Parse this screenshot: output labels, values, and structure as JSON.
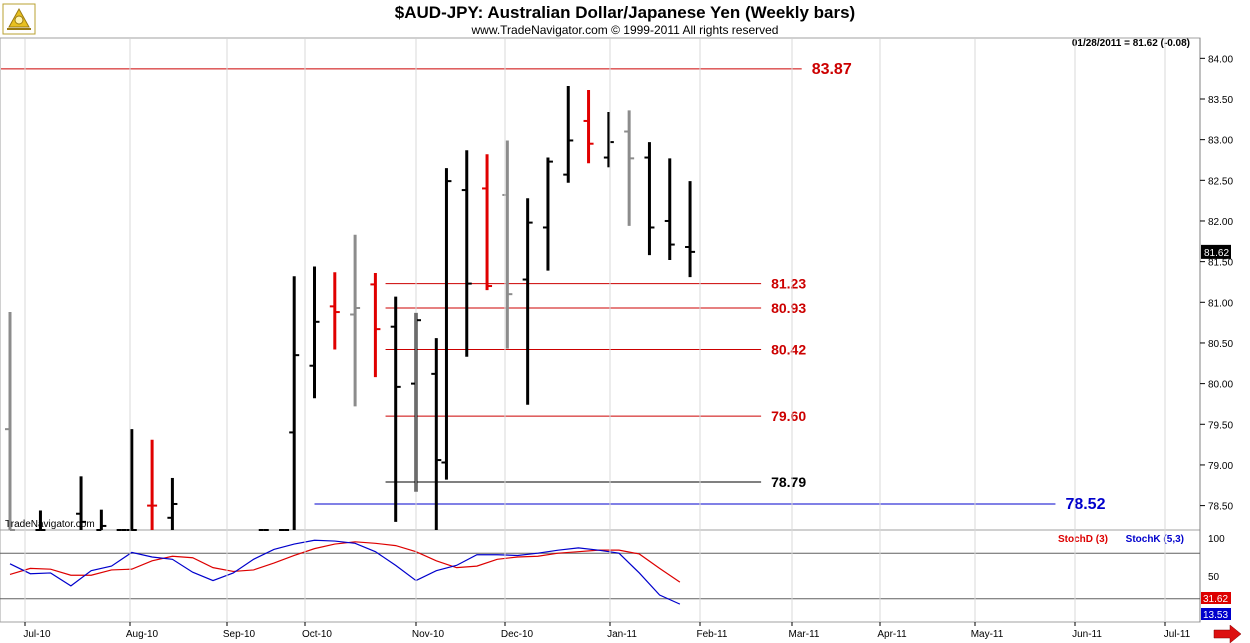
{
  "header": {
    "title": "$AUD-JPY:  Australian Dollar/Japanese Yen  (Weekly bars)",
    "subtitle": "www.TradeNavigator.com © 1999-2011 All rights reserved",
    "last_quote": "01/28/2011 = 81.62 (-0.08)",
    "watermark": "TradeNavigator.com",
    "logo": "trade-navigator-logo-icon"
  },
  "colors": {
    "up_bar": "#000000",
    "down_bar": "#e00000",
    "inside_bar": "#8c8c8c",
    "level_red": "#cc0000",
    "level_blue": "#0000cc",
    "stoch_d": "#dd0000",
    "stoch_k": "#0000cc"
  },
  "chart_data": [
    {
      "type": "ohlc",
      "title": "$AUD-JPY:  Australian Dollar/Japanese Yen  (Weekly bars)",
      "y_axis_side": "right",
      "ylim": [
        78.2,
        84.25
      ],
      "y_ticks": [
        "84.00",
        "83.50",
        "83.00",
        "82.50",
        "82.00",
        "81.50",
        "81.00",
        "80.50",
        "80.00",
        "79.50",
        "79.00",
        "78.50"
      ],
      "x_ticks": [
        "Jul-10",
        "Aug-10",
        "Sep-10",
        "Oct-10",
        "Nov-10",
        "Dec-10",
        "Jan-11",
        "Feb-11",
        "Mar-11",
        "Apr-11",
        "May-11",
        "Jun-11",
        "Jul-11"
      ],
      "last_price_label": "81.62",
      "bars": [
        {
          "week": 0,
          "h": 80.88,
          "l": 78.0,
          "o": 79.44,
          "c": 78.0,
          "color": "gray"
        },
        {
          "week": 3,
          "h": 78.44,
          "l": 78.0,
          "o": 78.2,
          "c": 78.1,
          "color": "black"
        },
        {
          "week": 7,
          "h": 78.86,
          "l": 78.0,
          "o": 78.4,
          "c": 78.3,
          "color": "black"
        },
        {
          "week": 9,
          "h": 78.45,
          "l": 78.05,
          "o": 78.1,
          "c": 78.25,
          "color": "black"
        },
        {
          "week": 11,
          "h": 78.18,
          "l": 78.0,
          "o": 78.1,
          "c": 78.12,
          "color": "black"
        },
        {
          "week": 12,
          "h": 79.44,
          "l": 78.0,
          "o": 78.15,
          "c": 78.2,
          "color": "black"
        },
        {
          "week": 14,
          "h": 79.31,
          "l": 78.0,
          "o": 78.5,
          "c": 78.5,
          "color": "red"
        },
        {
          "week": 16,
          "h": 78.84,
          "l": 78.0,
          "o": 78.35,
          "c": 78.52,
          "color": "black"
        },
        {
          "week": 25,
          "h": 78.14,
          "l": 78.0,
          "o": 78.1,
          "c": 78.12,
          "color": "black"
        },
        {
          "week": 27,
          "h": 78.2,
          "l": 78.0,
          "o": 78.05,
          "c": 78.15,
          "color": "black"
        },
        {
          "week": 28,
          "h": 81.32,
          "l": 78.2,
          "o": 79.4,
          "c": 80.35,
          "color": "black"
        },
        {
          "week": 30,
          "h": 81.44,
          "l": 79.82,
          "o": 80.22,
          "c": 80.76,
          "color": "black"
        },
        {
          "week": 32,
          "h": 81.37,
          "l": 80.42,
          "o": 80.95,
          "c": 80.88,
          "color": "red"
        },
        {
          "week": 34,
          "h": 81.83,
          "l": 79.72,
          "o": 80.85,
          "c": 80.93,
          "color": "gray"
        },
        {
          "week": 36,
          "h": 81.36,
          "l": 80.08,
          "o": 81.22,
          "c": 80.67,
          "color": "red"
        },
        {
          "week": 38,
          "h": 81.07,
          "l": 78.3,
          "o": 80.7,
          "c": 79.96,
          "color": "black"
        },
        {
          "week": 40,
          "h": 80.87,
          "l": 78.67,
          "o": 80.0,
          "c": 80.78,
          "color": "black"
        },
        {
          "week": 42,
          "h": 80.56,
          "l": 78.2,
          "o": 80.12,
          "c": 79.06,
          "color": "black"
        },
        {
          "week": 43,
          "h": 82.65,
          "l": 78.82,
          "o": 79.03,
          "c": 82.49,
          "color": "black"
        },
        {
          "week": 45,
          "h": 82.87,
          "l": 80.33,
          "o": 82.38,
          "c": 81.23,
          "color": "black"
        },
        {
          "week": 47,
          "h": 82.82,
          "l": 81.15,
          "o": 82.4,
          "c": 81.2,
          "color": "red"
        },
        {
          "week": 49,
          "h": 82.99,
          "l": 80.43,
          "o": 82.32,
          "c": 81.1,
          "color": "gray"
        },
        {
          "week": 51,
          "h": 82.28,
          "l": 79.74,
          "o": 81.28,
          "c": 81.98,
          "color": "black"
        },
        {
          "week": 53,
          "h": 82.78,
          "l": 81.39,
          "o": 81.92,
          "c": 82.73,
          "color": "black"
        },
        {
          "week": 55,
          "h": 83.66,
          "l": 82.47,
          "o": 82.57,
          "c": 82.99,
          "color": "black"
        },
        {
          "week": 57,
          "h": 83.61,
          "l": 82.71,
          "o": 83.23,
          "c": 82.95,
          "color": "red"
        },
        {
          "week": 59,
          "h": 83.34,
          "l": 82.66,
          "o": 82.78,
          "c": 82.97,
          "color": "black"
        },
        {
          "week": 61,
          "h": 83.36,
          "l": 81.94,
          "o": 83.1,
          "c": 82.77,
          "color": "gray"
        },
        {
          "week": 63,
          "h": 82.97,
          "l": 81.58,
          "o": 82.78,
          "c": 81.92,
          "color": "black"
        },
        {
          "week": 65,
          "h": 82.77,
          "l": 81.52,
          "o": 82.0,
          "c": 81.71,
          "color": "black"
        },
        {
          "week": 67,
          "h": 82.49,
          "l": 81.31,
          "o": 81.68,
          "c": 81.62,
          "color": "black"
        }
      ],
      "levels": [
        {
          "label": "83.87",
          "value": 83.87,
          "color": "red",
          "from_week": -1,
          "to_week": 78
        },
        {
          "label": "81.23",
          "value": 81.23,
          "color": "red",
          "from_week": 37,
          "to_week": 74
        },
        {
          "label": "80.93",
          "value": 80.93,
          "color": "red",
          "from_week": 37,
          "to_week": 74
        },
        {
          "label": "80.42",
          "value": 80.42,
          "color": "red",
          "from_week": 37,
          "to_week": 74
        },
        {
          "label": "79.60",
          "value": 79.6,
          "color": "red",
          "from_week": 37,
          "to_week": 74
        },
        {
          "label": "78.79",
          "value": 78.79,
          "color": "black",
          "from_week": 37,
          "to_week": 74
        },
        {
          "label": "78.52",
          "value": 78.52,
          "color": "blue",
          "from_week": 30,
          "to_week": 103
        }
      ]
    },
    {
      "type": "line",
      "title": "",
      "ylim": [
        0,
        100
      ],
      "y_ticks": [
        "100",
        "50"
      ],
      "reference_lines": [
        80,
        20
      ],
      "legend": [
        {
          "name": "StochD (3)",
          "color": "red"
        },
        {
          "name": "StochK (5,3)",
          "color": "blue"
        }
      ],
      "last_values": {
        "stochd": "31.62",
        "stochk": "13.53"
      },
      "series": [
        {
          "name": "StochD (3)",
          "color": "red",
          "weeks": [
            0,
            2,
            4,
            6,
            8,
            10,
            12,
            14,
            16,
            18,
            20,
            22,
            24,
            26,
            28,
            30,
            32,
            34,
            36,
            38,
            40,
            42,
            44,
            46,
            48,
            50,
            52,
            54,
            56,
            58,
            60,
            62,
            64,
            66
          ],
          "values": [
            52,
            60,
            59,
            51,
            51,
            58,
            59,
            70,
            76,
            74,
            61,
            56,
            58,
            67,
            77,
            86,
            92,
            95,
            93,
            90,
            82,
            70,
            61,
            63,
            72,
            75,
            76,
            80,
            82,
            84,
            84,
            79,
            60,
            42
          ]
        },
        {
          "name": "StochK (5,3)",
          "color": "blue",
          "weeks": [
            0,
            2,
            4,
            6,
            8,
            10,
            12,
            14,
            16,
            18,
            20,
            22,
            24,
            26,
            28,
            30,
            32,
            34,
            36,
            38,
            40,
            42,
            44,
            46,
            48,
            50,
            52,
            54,
            56,
            58,
            60,
            62,
            64,
            66
          ],
          "values": [
            66,
            53,
            54,
            37,
            57,
            63,
            81,
            75,
            72,
            55,
            44,
            54,
            72,
            85,
            92,
            97,
            96,
            93,
            82,
            64,
            44,
            57,
            64,
            78,
            78,
            77,
            80,
            84,
            87,
            84,
            80,
            54,
            25,
            13
          ]
        }
      ]
    }
  ]
}
